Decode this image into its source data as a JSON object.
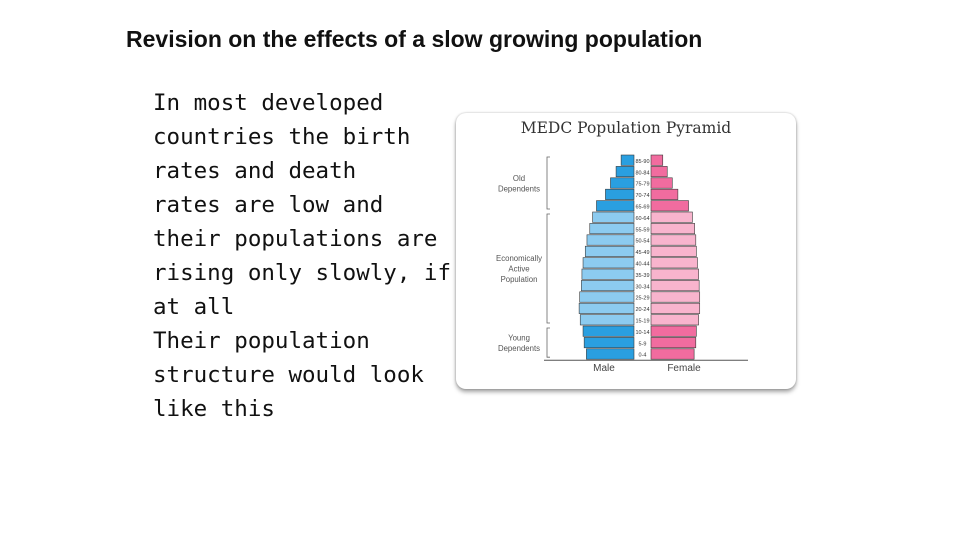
{
  "slide": {
    "title": "Revision on the effects of a slow growing population",
    "paragraph1": "In most developed\ncountries the birth\nrates and death\nrates are low and\ntheir populations are\nrising only slowly, if\nat all",
    "paragraph2": "Their population\nstructure would look\nlike this"
  },
  "chart_data": {
    "type": "bar",
    "title": "MEDC Population Pyramid",
    "categories": [
      "85-90",
      "80-84",
      "75-79",
      "70-74",
      "65-69",
      "60-64",
      "55-59",
      "50-54",
      "45-49",
      "40-44",
      "35-39",
      "30-34",
      "25-29",
      "20-24",
      "15-19",
      "10-14",
      "5-9",
      "0-4"
    ],
    "series": [
      {
        "name": "Male",
        "values": [
          2.3,
          3.2,
          4.2,
          5.1,
          6.7,
          7.4,
          7.9,
          8.4,
          8.7,
          9.1,
          9.3,
          9.4,
          9.7,
          9.8,
          9.6,
          9.1,
          8.9,
          8.5
        ]
      },
      {
        "name": "Female",
        "values": [
          2.1,
          2.9,
          3.8,
          4.8,
          6.7,
          7.4,
          7.8,
          8.0,
          8.1,
          8.3,
          8.5,
          8.6,
          8.7,
          8.7,
          8.5,
          8.1,
          8.0,
          7.7
        ]
      }
    ],
    "group_labels": [
      {
        "text": "Old\nDependents"
      },
      {
        "text": "Economically\nActive\nPopulation"
      },
      {
        "text": "Young\nDependents"
      }
    ],
    "colors": {
      "male_old": "#2a9fe0",
      "male_active": "#8ccbf0",
      "male_young": "#2a9fe0",
      "female_old": "#f16c9f",
      "female_active": "#f8b4cd",
      "female_young": "#f16c9f",
      "outline": "#3a3a3a"
    }
  }
}
